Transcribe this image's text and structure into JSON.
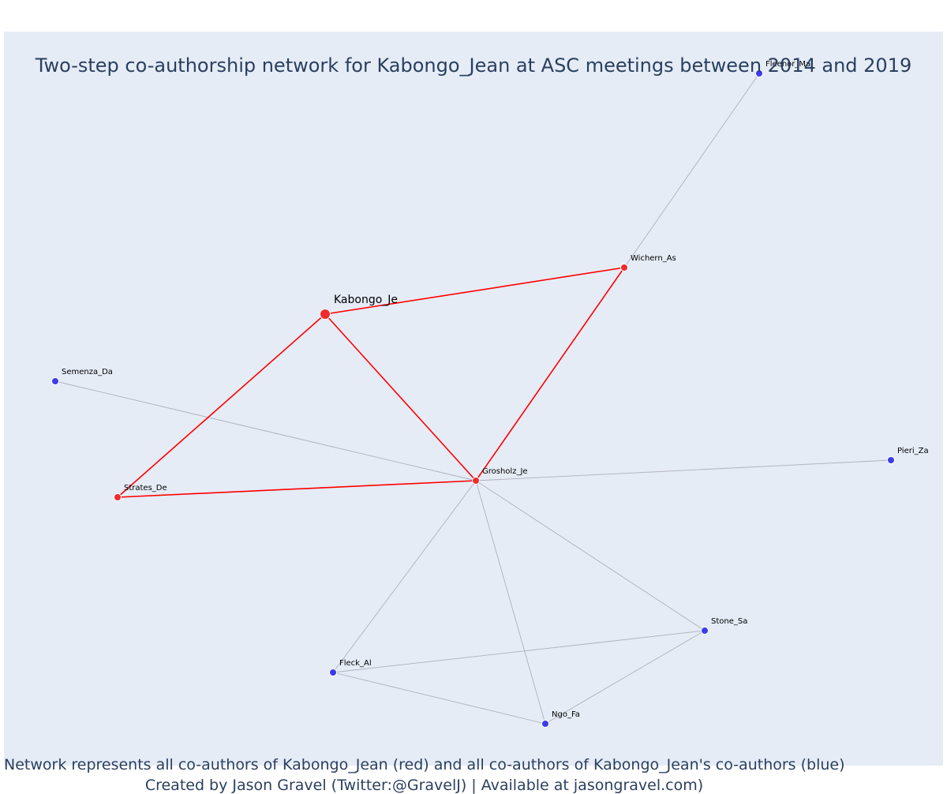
{
  "title": "Two-step co-authorship network for Kabongo_Jean at ASC meetings between 2014 and 2019",
  "captions": {
    "line1": "Network represents all co-authors of Kabongo_Jean (red) and all co-authors of Kabongo_Jean's co-authors (blue)",
    "line2": "Created by Jason Gravel (Twitter:@GravelJ) | Available at jasongravel.com)"
  },
  "colors": {
    "background": "#e5ecf6",
    "primary_edge": "#ff0000",
    "secondary_edge": "#b0b0bc",
    "coauthor_node": "#ef2b2b",
    "second_degree_node": "#3b3bea",
    "title_text": "#2a3f5f"
  },
  "nodes": [
    {
      "id": "Kabongo_Je",
      "label": "Kabongo_Je",
      "group": "focal"
    },
    {
      "id": "Wichern_As",
      "label": "Wichern_As",
      "group": "coauthor"
    },
    {
      "id": "Grosholz_Je",
      "label": "Grosholz_Je",
      "group": "coauthor"
    },
    {
      "id": "Strates_De",
      "label": "Strates_De",
      "group": "coauthor"
    },
    {
      "id": "Fleenor_Ma",
      "label": "Fleenor_Ma",
      "group": "second"
    },
    {
      "id": "Semenza_Da",
      "label": "Semenza_Da",
      "group": "second"
    },
    {
      "id": "Pieri_Za",
      "label": "Pieri_Za",
      "group": "second"
    },
    {
      "id": "Stone_Sa",
      "label": "Stone_Sa",
      "group": "second"
    },
    {
      "id": "Fleck_Al",
      "label": "Fleck_Al",
      "group": "second"
    },
    {
      "id": "Ngo_Fa",
      "label": "Ngo_Fa",
      "group": "second"
    }
  ],
  "edges": [
    {
      "source": "Kabongo_Je",
      "target": "Wichern_As",
      "type": "primary"
    },
    {
      "source": "Kabongo_Je",
      "target": "Grosholz_Je",
      "type": "primary"
    },
    {
      "source": "Kabongo_Je",
      "target": "Strates_De",
      "type": "primary"
    },
    {
      "source": "Wichern_As",
      "target": "Grosholz_Je",
      "type": "primary"
    },
    {
      "source": "Strates_De",
      "target": "Grosholz_Je",
      "type": "primary"
    },
    {
      "source": "Wichern_As",
      "target": "Fleenor_Ma",
      "type": "secondary"
    },
    {
      "source": "Semenza_Da",
      "target": "Grosholz_Je",
      "type": "secondary"
    },
    {
      "source": "Grosholz_Je",
      "target": "Pieri_Za",
      "type": "secondary"
    },
    {
      "source": "Grosholz_Je",
      "target": "Stone_Sa",
      "type": "secondary"
    },
    {
      "source": "Grosholz_Je",
      "target": "Fleck_Al",
      "type": "secondary"
    },
    {
      "source": "Grosholz_Je",
      "target": "Ngo_Fa",
      "type": "secondary"
    },
    {
      "source": "Fleck_Al",
      "target": "Stone_Sa",
      "type": "secondary"
    },
    {
      "source": "Fleck_Al",
      "target": "Ngo_Fa",
      "type": "secondary"
    },
    {
      "source": "Ngo_Fa",
      "target": "Stone_Sa",
      "type": "secondary"
    }
  ]
}
